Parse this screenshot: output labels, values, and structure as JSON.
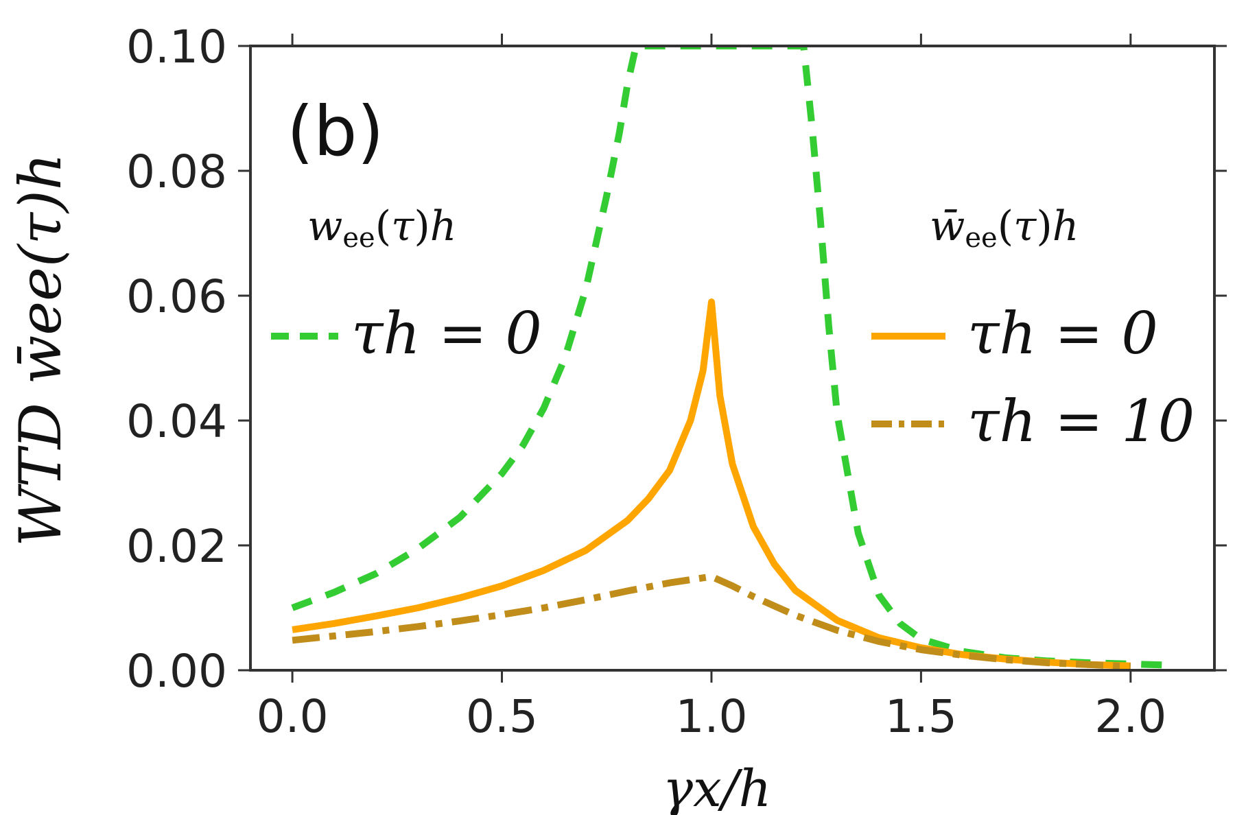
{
  "chart_data": {
    "type": "line",
    "panel_label": "(b)",
    "xlabel": "γx/h",
    "ylabel": "WTD w̄ee(τ)h",
    "xlim": [
      -0.1,
      2.2
    ],
    "ylim": [
      0.0,
      0.1
    ],
    "x_ticks": [
      "0.0",
      "0.5",
      "1.0",
      "1.5",
      "2.0"
    ],
    "y_ticks": [
      "0.00",
      "0.02",
      "0.04",
      "0.06",
      "0.08",
      "0.10"
    ],
    "grid": false,
    "legend_groups": [
      {
        "title": "wee(τ)h",
        "position": "top-left"
      },
      {
        "title": "w̄ee(τ)h",
        "position": "top-right"
      }
    ],
    "series": [
      {
        "name": "τh = 0",
        "legend_group": 0,
        "color": "#33cc33",
        "style": "dashed",
        "x": [
          0.0,
          0.1,
          0.2,
          0.3,
          0.4,
          0.5,
          0.55,
          0.6,
          0.65,
          0.7,
          0.75,
          0.78,
          0.8,
          0.82,
          1.22,
          1.24,
          1.26,
          1.28,
          1.3,
          1.35,
          1.4,
          1.45,
          1.5,
          1.6,
          1.7,
          1.8,
          1.9,
          2.0,
          2.1
        ],
        "y": [
          0.01,
          0.0125,
          0.0155,
          0.0195,
          0.0245,
          0.0315,
          0.036,
          0.042,
          0.05,
          0.061,
          0.076,
          0.086,
          0.094,
          0.1,
          0.1,
          0.087,
          0.072,
          0.055,
          0.041,
          0.022,
          0.012,
          0.0075,
          0.005,
          0.003,
          0.002,
          0.0015,
          0.0012,
          0.001,
          0.0008
        ]
      },
      {
        "name": "τh = 0",
        "legend_group": 1,
        "color": "#ffa500",
        "style": "solid",
        "x": [
          0.0,
          0.1,
          0.2,
          0.3,
          0.4,
          0.5,
          0.6,
          0.7,
          0.8,
          0.85,
          0.9,
          0.95,
          0.98,
          1.0,
          1.02,
          1.05,
          1.1,
          1.15,
          1.2,
          1.3,
          1.4,
          1.5,
          1.6,
          1.7,
          1.8,
          1.9,
          2.0
        ],
        "y": [
          0.0065,
          0.0075,
          0.0087,
          0.01,
          0.0116,
          0.0135,
          0.016,
          0.0192,
          0.024,
          0.0275,
          0.032,
          0.04,
          0.048,
          0.059,
          0.044,
          0.033,
          0.023,
          0.017,
          0.0128,
          0.008,
          0.0052,
          0.0036,
          0.0025,
          0.0018,
          0.0013,
          0.0009,
          0.0007
        ]
      },
      {
        "name": "τh = 10",
        "legend_group": 1,
        "color": "#c08c1a",
        "style": "dashdot",
        "x": [
          0.0,
          0.1,
          0.2,
          0.3,
          0.4,
          0.5,
          0.6,
          0.7,
          0.8,
          0.9,
          1.0,
          1.05,
          1.1,
          1.2,
          1.3,
          1.4,
          1.5,
          1.6,
          1.7,
          1.8,
          1.9,
          2.0
        ],
        "y": [
          0.0048,
          0.0055,
          0.0062,
          0.007,
          0.0079,
          0.0089,
          0.01,
          0.0113,
          0.0127,
          0.014,
          0.015,
          0.0135,
          0.0118,
          0.0088,
          0.0064,
          0.0046,
          0.0033,
          0.0024,
          0.0017,
          0.0012,
          0.0009,
          0.0006
        ]
      }
    ]
  }
}
